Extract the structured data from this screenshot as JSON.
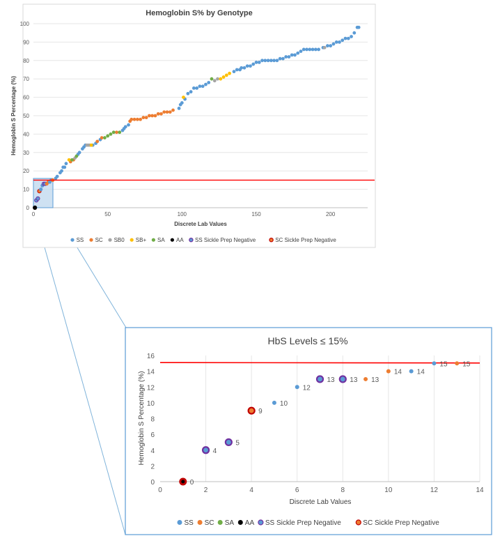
{
  "colors": {
    "SS": "#5B9BD5",
    "SC": "#ED7D31",
    "SB0": "#A5A5A5",
    "SB+": "#FFC000",
    "SA": "#70AD47",
    "AA": "#000000",
    "threshold": "#FF0000",
    "outline_purple": "#7030A0",
    "outline_red": "#C00000",
    "zoom_fill": "#BDD7EE",
    "connector": "#7FB3DA",
    "frame": "#D9D9D9"
  },
  "chart_data": [
    {
      "type": "scatter",
      "title": "Hemoglobin S% by Genotype",
      "xlabel": "Discrete Lab Values",
      "ylabel": "Hemoglobin S Percentage (%)",
      "xlim": [
        0,
        225
      ],
      "ylim": [
        0,
        100
      ],
      "x_ticks": [
        "0",
        "50",
        "100",
        "150",
        "200"
      ],
      "y_ticks": [
        "0",
        "10",
        "20",
        "30",
        "40",
        "50",
        "60",
        "70",
        "80",
        "90",
        "100"
      ],
      "legend_position": "bottom",
      "legend": [
        "SS",
        "SC",
        "SB0",
        "SB+",
        "SA",
        "AA",
        "SS Sickle Prep Negative",
        "SC Sickle Prep Negative"
      ],
      "threshold": 15,
      "series": [
        {
          "name": "SS",
          "points": [
            [
              13,
              15
            ],
            [
              15,
              16
            ],
            [
              16,
              17
            ],
            [
              18,
              19
            ],
            [
              19,
              20
            ],
            [
              20,
              22
            ],
            [
              21,
              22
            ],
            [
              22,
              24
            ],
            [
              30,
              29
            ],
            [
              31,
              30
            ],
            [
              33,
              32
            ],
            [
              34,
              33
            ],
            [
              35,
              34
            ],
            [
              40,
              34
            ],
            [
              42,
              35
            ],
            [
              45,
              37
            ],
            [
              60,
              42
            ],
            [
              61,
              43
            ],
            [
              62,
              44
            ],
            [
              64,
              45
            ],
            [
              98,
              54
            ],
            [
              99,
              56
            ],
            [
              100,
              57
            ],
            [
              102,
              59
            ],
            [
              104,
              62
            ],
            [
              106,
              63
            ],
            [
              108,
              65
            ],
            [
              110,
              65
            ],
            [
              112,
              66
            ],
            [
              114,
              66
            ],
            [
              116,
              67
            ],
            [
              118,
              68
            ],
            [
              135,
              74
            ],
            [
              137,
              75
            ],
            [
              139,
              75
            ],
            [
              140,
              76
            ],
            [
              142,
              76
            ],
            [
              144,
              77
            ],
            [
              146,
              77
            ],
            [
              148,
              78
            ],
            [
              150,
              79
            ],
            [
              152,
              79
            ],
            [
              154,
              80
            ],
            [
              156,
              80
            ],
            [
              158,
              80
            ],
            [
              160,
              80
            ],
            [
              162,
              80
            ],
            [
              164,
              80
            ],
            [
              166,
              81
            ],
            [
              168,
              81
            ],
            [
              170,
              82
            ],
            [
              172,
              82
            ],
            [
              174,
              83
            ],
            [
              176,
              83
            ],
            [
              178,
              84
            ],
            [
              180,
              85
            ],
            [
              182,
              86
            ],
            [
              184,
              86
            ],
            [
              186,
              86
            ],
            [
              188,
              86
            ],
            [
              190,
              86
            ],
            [
              192,
              86
            ],
            [
              195,
              87
            ],
            [
              198,
              88
            ],
            [
              200,
              88
            ],
            [
              202,
              89
            ],
            [
              204,
              90
            ],
            [
              206,
              90
            ],
            [
              208,
              91
            ],
            [
              210,
              92
            ],
            [
              212,
              92
            ],
            [
              214,
              93
            ],
            [
              216,
              95
            ],
            [
              218,
              98
            ],
            [
              219,
              98
            ]
          ]
        },
        {
          "name": "SC",
          "points": [
            [
              25,
              25
            ],
            [
              27,
              26
            ],
            [
              43,
              36
            ],
            [
              46,
              38
            ],
            [
              56,
              41
            ],
            [
              65,
              47
            ],
            [
              66,
              48
            ],
            [
              68,
              48
            ],
            [
              70,
              48
            ],
            [
              72,
              48
            ],
            [
              74,
              49
            ],
            [
              76,
              49
            ],
            [
              78,
              50
            ],
            [
              80,
              50
            ],
            [
              82,
              50
            ],
            [
              84,
              51
            ],
            [
              86,
              51
            ],
            [
              88,
              52
            ],
            [
              90,
              52
            ],
            [
              92,
              52
            ],
            [
              94,
              53
            ]
          ]
        },
        {
          "name": "SB0",
          "points": [
            [
              28,
              27
            ],
            [
              36,
              34
            ],
            [
              37,
              34
            ],
            [
              38,
              34
            ],
            [
              122,
              69
            ],
            [
              124,
              70
            ],
            [
              196,
              87
            ]
          ]
        },
        {
          "name": "SB+",
          "points": [
            [
              24,
              26
            ],
            [
              39,
              34
            ],
            [
              101,
              60
            ],
            [
              126,
              70
            ],
            [
              128,
              71
            ],
            [
              130,
              72
            ],
            [
              132,
              73
            ]
          ]
        },
        {
          "name": "SA",
          "points": [
            [
              26,
              26
            ],
            [
              29,
              28
            ],
            [
              48,
              38
            ],
            [
              50,
              39
            ],
            [
              52,
              40
            ],
            [
              54,
              41
            ],
            [
              58,
              41
            ],
            [
              120,
              70
            ]
          ]
        }
      ]
    },
    {
      "type": "scatter",
      "title": "HbS Levels ≤ 15%",
      "xlabel": "Discrete Lab Values",
      "ylabel": "Hemoglobin S Percentage (%)",
      "xlim": [
        0,
        14
      ],
      "ylim": [
        0,
        16
      ],
      "x_ticks": [
        "0",
        "2",
        "4",
        "6",
        "8",
        "10",
        "12",
        "14"
      ],
      "y_ticks": [
        "0",
        "2",
        "4",
        "6",
        "8",
        "10",
        "12",
        "14",
        "16"
      ],
      "legend_position": "bottom",
      "legend": [
        "SS",
        "SC",
        "SA",
        "AA",
        "SS Sickle Prep Negative",
        "SC Sickle Prep Negative"
      ],
      "threshold": 15.1,
      "points": [
        {
          "x": 1,
          "y": 0,
          "label": "0",
          "group": "AA"
        },
        {
          "x": 2,
          "y": 4,
          "label": "4",
          "group": "SS Sickle Prep Negative"
        },
        {
          "x": 3,
          "y": 5,
          "label": "5",
          "group": "SS Sickle Prep Negative"
        },
        {
          "x": 4,
          "y": 9,
          "label": "9",
          "group": "SC Sickle Prep Negative"
        },
        {
          "x": 5,
          "y": 10,
          "label": "10",
          "group": "SS"
        },
        {
          "x": 6,
          "y": 12,
          "label": "12",
          "group": "SS"
        },
        {
          "x": 7,
          "y": 13,
          "label": "13",
          "group": "SS Sickle Prep Negative"
        },
        {
          "x": 8,
          "y": 13,
          "label": "13",
          "group": "SS Sickle Prep Negative"
        },
        {
          "x": 9,
          "y": 13,
          "label": "13",
          "group": "SC"
        },
        {
          "x": 10,
          "y": 14,
          "label": "14",
          "group": "SC"
        },
        {
          "x": 11,
          "y": 14,
          "label": "14",
          "group": "SS"
        },
        {
          "x": 12,
          "y": 15,
          "label": "15",
          "group": "SS"
        },
        {
          "x": 13,
          "y": 15,
          "label": "15",
          "group": "SC"
        }
      ]
    }
  ]
}
